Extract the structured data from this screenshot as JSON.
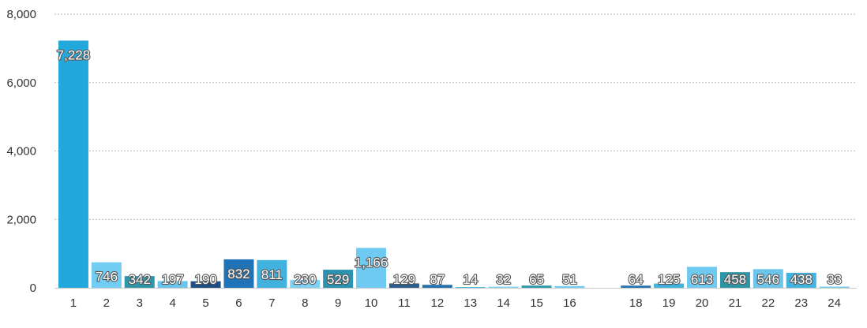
{
  "chart_data": {
    "type": "bar",
    "title": "",
    "xlabel": "",
    "ylabel": "",
    "ylim": [
      0,
      8000
    ],
    "yticks": [
      0,
      2000,
      4000,
      6000,
      8000
    ],
    "ytick_labels": [
      "0",
      "2,000",
      "4,000",
      "6,000",
      "8,000"
    ],
    "grid": true,
    "categories": [
      "1",
      "2",
      "3",
      "4",
      "5",
      "6",
      "7",
      "8",
      "9",
      "10",
      "11",
      "12",
      "13",
      "14",
      "15",
      "16",
      "17",
      "18",
      "19",
      "20",
      "21",
      "22",
      "23",
      "24"
    ],
    "values": [
      7228,
      746,
      342,
      197,
      190,
      832,
      811,
      230,
      529,
      1166,
      129,
      87,
      14,
      32,
      65,
      51,
      null,
      64,
      125,
      613,
      458,
      546,
      438,
      33
    ],
    "value_labels": [
      "7,228",
      "746",
      "342",
      "197",
      "190",
      "832",
      "811",
      "230",
      "529",
      "1,166",
      "129",
      "87",
      "14",
      "32",
      "65",
      "51",
      "",
      "64",
      "125",
      "613",
      "458",
      "546",
      "438",
      "33"
    ],
    "tick_labels": [
      "1",
      "2",
      "3",
      "4",
      "5",
      "6",
      "7",
      "8",
      "9",
      "10",
      "11",
      "12",
      "13",
      "14",
      "15",
      "16",
      "",
      "18",
      "19",
      "20",
      "21",
      "22",
      "23",
      "24"
    ],
    "colors": [
      "#23a8dc",
      "#72cdf2",
      "#2e96a8",
      "#6cc6ec",
      "#1e4e82",
      "#1f73b6",
      "#41b1dd",
      "#7fd1f4",
      "#2b93b0",
      "#6fcaf1",
      "#2d5f8e",
      "#2571ad",
      "#49b6e0",
      "#7fd0f3",
      "#2f9aac",
      "#73cdf2",
      "#2a5c8d",
      "#2773b2",
      "#41b3df",
      "#6fcaef",
      "#2e95a6",
      "#6cc6ec",
      "#43b3df",
      "#6fcaef"
    ]
  }
}
